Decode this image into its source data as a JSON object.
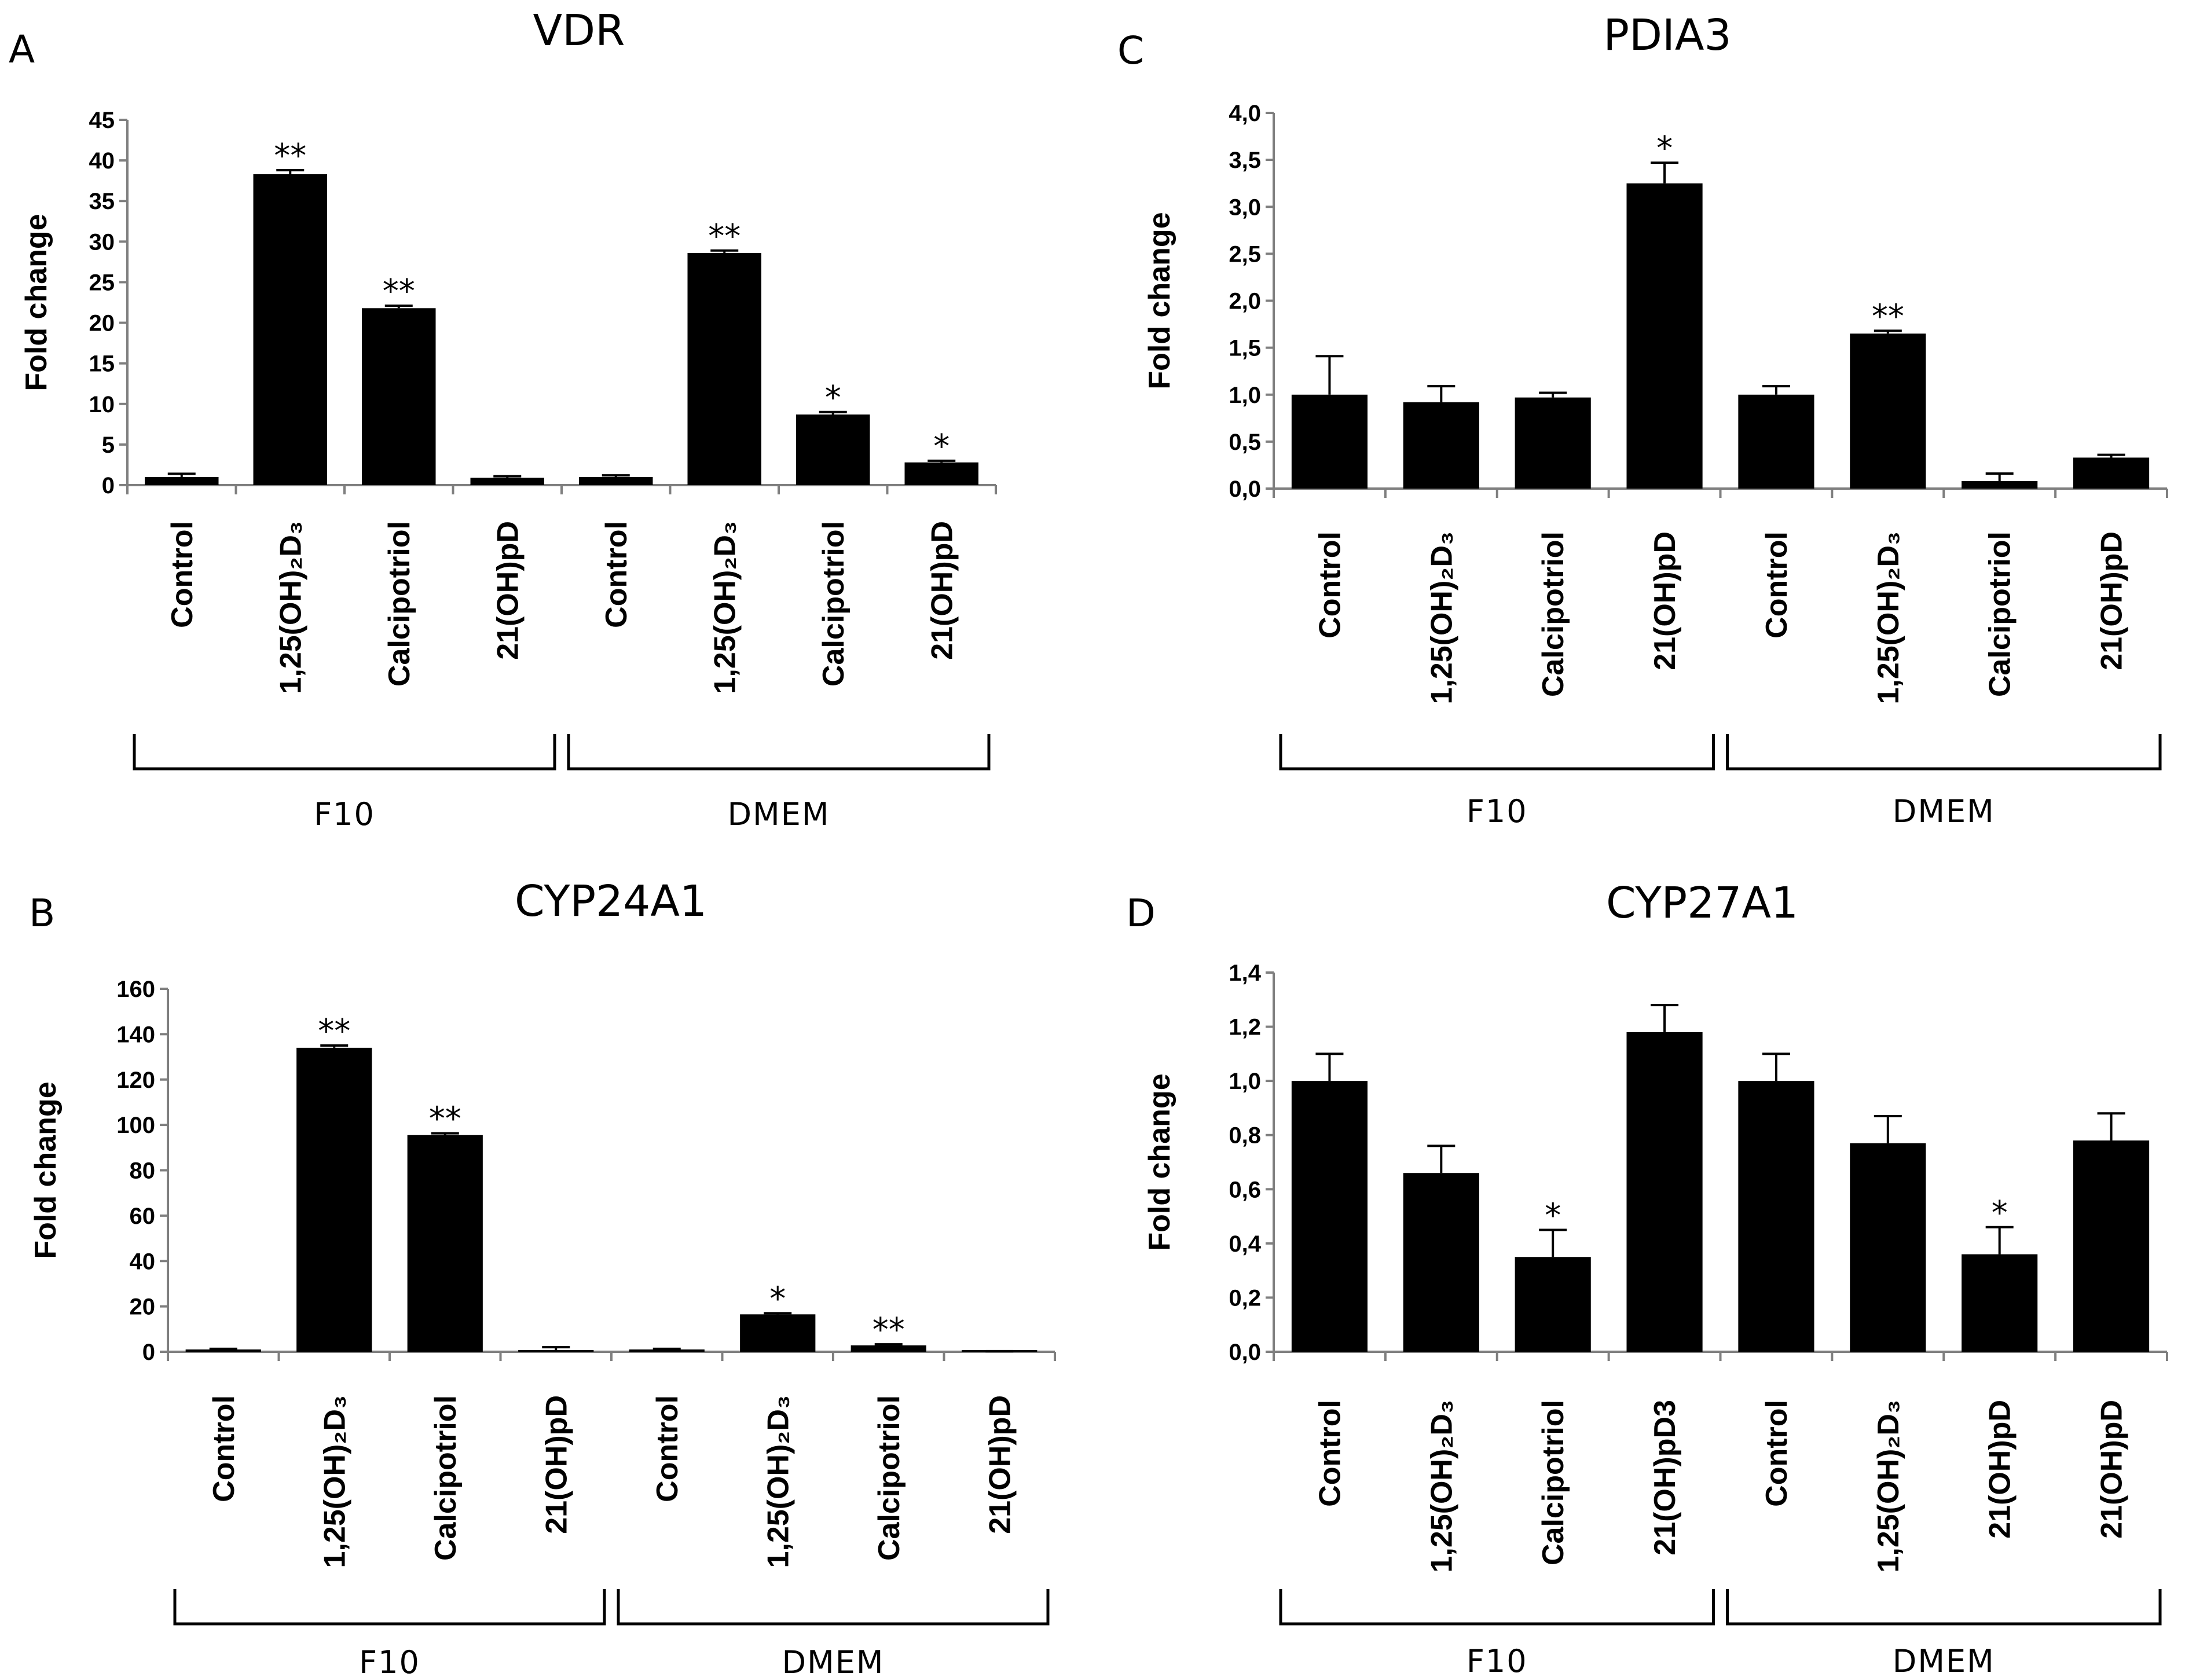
{
  "chart_data": [
    {
      "type": "bar",
      "panel": "A",
      "title": "VDR",
      "ylabel": "Fold change",
      "ylim": [
        0,
        45
      ],
      "yticks": [
        "0",
        "5",
        "10",
        "15",
        "20",
        "25",
        "30",
        "35",
        "40",
        "45"
      ],
      "categories": [
        "Control",
        "1,25(OH)₂D₃",
        "Calcipotriol",
        "21(OH)pD",
        "Control",
        "1,25(OH)₂D₃",
        "Calcipotriol",
        "21(OH)pD"
      ],
      "values": [
        1.0,
        38.3,
        21.8,
        0.9,
        1.0,
        28.6,
        8.7,
        2.8
      ],
      "errors": [
        0.4,
        0.5,
        0.3,
        0.2,
        0.2,
        0.3,
        0.3,
        0.2
      ],
      "significance": [
        "",
        "**",
        "**",
        "",
        "",
        "**",
        "*",
        "*"
      ],
      "groups": [
        {
          "label": "F10",
          "span": [
            0,
            3
          ]
        },
        {
          "label": "DMEM",
          "span": [
            4,
            7
          ]
        }
      ]
    },
    {
      "type": "bar",
      "panel": "B",
      "title": "CYP24A1",
      "ylabel": "Fold change",
      "ylim": [
        0,
        160
      ],
      "yticks": [
        "0",
        "20",
        "40",
        "60",
        "80",
        "100",
        "120",
        "140",
        "160"
      ],
      "categories": [
        "Control",
        "1,25(OH)₂D₃",
        "Calcipotriol",
        "21(OH)pD",
        "Control",
        "1,25(OH)₂D₃",
        "Calcipotriol",
        "21(OH)pD"
      ],
      "values": [
        1.0,
        134,
        95.5,
        0.0,
        1.0,
        16.5,
        2.8,
        0.2
      ],
      "errors": [
        0.3,
        1.0,
        0.8,
        2.0,
        0.3,
        0.5,
        0.5,
        0.1
      ],
      "significance": [
        "",
        "**",
        "**",
        "",
        "",
        "*",
        "**",
        ""
      ],
      "groups": [
        {
          "label": "F10",
          "span": [
            0,
            3
          ]
        },
        {
          "label": "DMEM",
          "span": [
            4,
            7
          ]
        }
      ]
    },
    {
      "type": "bar",
      "panel": "C",
      "title": "PDIA3",
      "ylabel": "Fold change",
      "ylim": [
        0,
        4
      ],
      "yticks": [
        "0,0",
        "0,5",
        "1,0",
        "1,5",
        "2,0",
        "2,5",
        "3,0",
        "3,5",
        "4,0"
      ],
      "categories": [
        "Control",
        "1,25(OH)₂D₃",
        "Calcipotriol",
        "21(OH)pD",
        "Control",
        "1,25(OH)₂D₃",
        "Calcipotriol",
        "21(OH)pD"
      ],
      "values": [
        1.0,
        0.92,
        0.97,
        3.25,
        1.0,
        1.65,
        0.08,
        0.33
      ],
      "errors": [
        0.41,
        0.17,
        0.05,
        0.22,
        0.09,
        0.03,
        0.08,
        0.03
      ],
      "significance": [
        "",
        "",
        "",
        "*",
        "",
        "**",
        "",
        ""
      ],
      "groups": [
        {
          "label": "F10",
          "span": [
            0,
            3
          ]
        },
        {
          "label": "DMEM",
          "span": [
            4,
            7
          ]
        }
      ]
    },
    {
      "type": "bar",
      "panel": "D",
      "title": "CYP27A1",
      "ylabel": "Fold change",
      "ylim": [
        0,
        1.4
      ],
      "yticks": [
        "0,0",
        "0,2",
        "0,4",
        "0,6",
        "0,8",
        "1,0",
        "1,2",
        "1,4"
      ],
      "categories": [
        "Control",
        "1,25(OH)₂D₃",
        "Calcipotriol",
        "21(OH)pD3",
        "Control",
        "1,25(OH)₂D₃",
        "21(OH)pD",
        "21(OH)pD"
      ],
      "values": [
        1.0,
        0.66,
        0.35,
        1.18,
        1.0,
        0.77,
        0.36,
        0.78
      ],
      "errors": [
        0.1,
        0.1,
        0.1,
        0.1,
        0.1,
        0.1,
        0.1,
        0.1
      ],
      "significance": [
        "",
        "",
        "*",
        "",
        "",
        "",
        "*",
        ""
      ],
      "groups": [
        {
          "label": "F10",
          "span": [
            0,
            3
          ]
        },
        {
          "label": "DMEM",
          "span": [
            4,
            7
          ]
        }
      ]
    }
  ]
}
